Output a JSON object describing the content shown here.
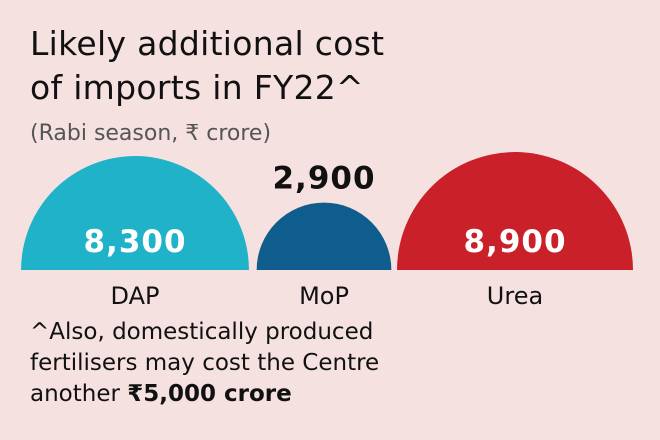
{
  "chart_data": {
    "type": "semicircle-bubble",
    "title_line1": "Likely additional cost",
    "title_line2": "of imports in FY22^",
    "subtitle": "(Rabi season, ₹ crore)",
    "categories": [
      "DAP",
      "MoP",
      "Urea"
    ],
    "values": [
      8300,
      2900,
      8900
    ],
    "value_labels": [
      "8,300",
      "2,900",
      "8,900"
    ],
    "colors": [
      "#1fb2c8",
      "#0e5d8c",
      "#c9202a"
    ],
    "value_label_colors": [
      "#ffffff",
      "#111111",
      "#ffffff"
    ],
    "value_label_placement": [
      "inside",
      "above",
      "inside"
    ]
  },
  "footnote": {
    "line1": "^Also, domestically produced",
    "line2": "fertilisers may cost the Centre",
    "line3_prefix": "another ",
    "line3_bold": "₹5,000 crore"
  }
}
